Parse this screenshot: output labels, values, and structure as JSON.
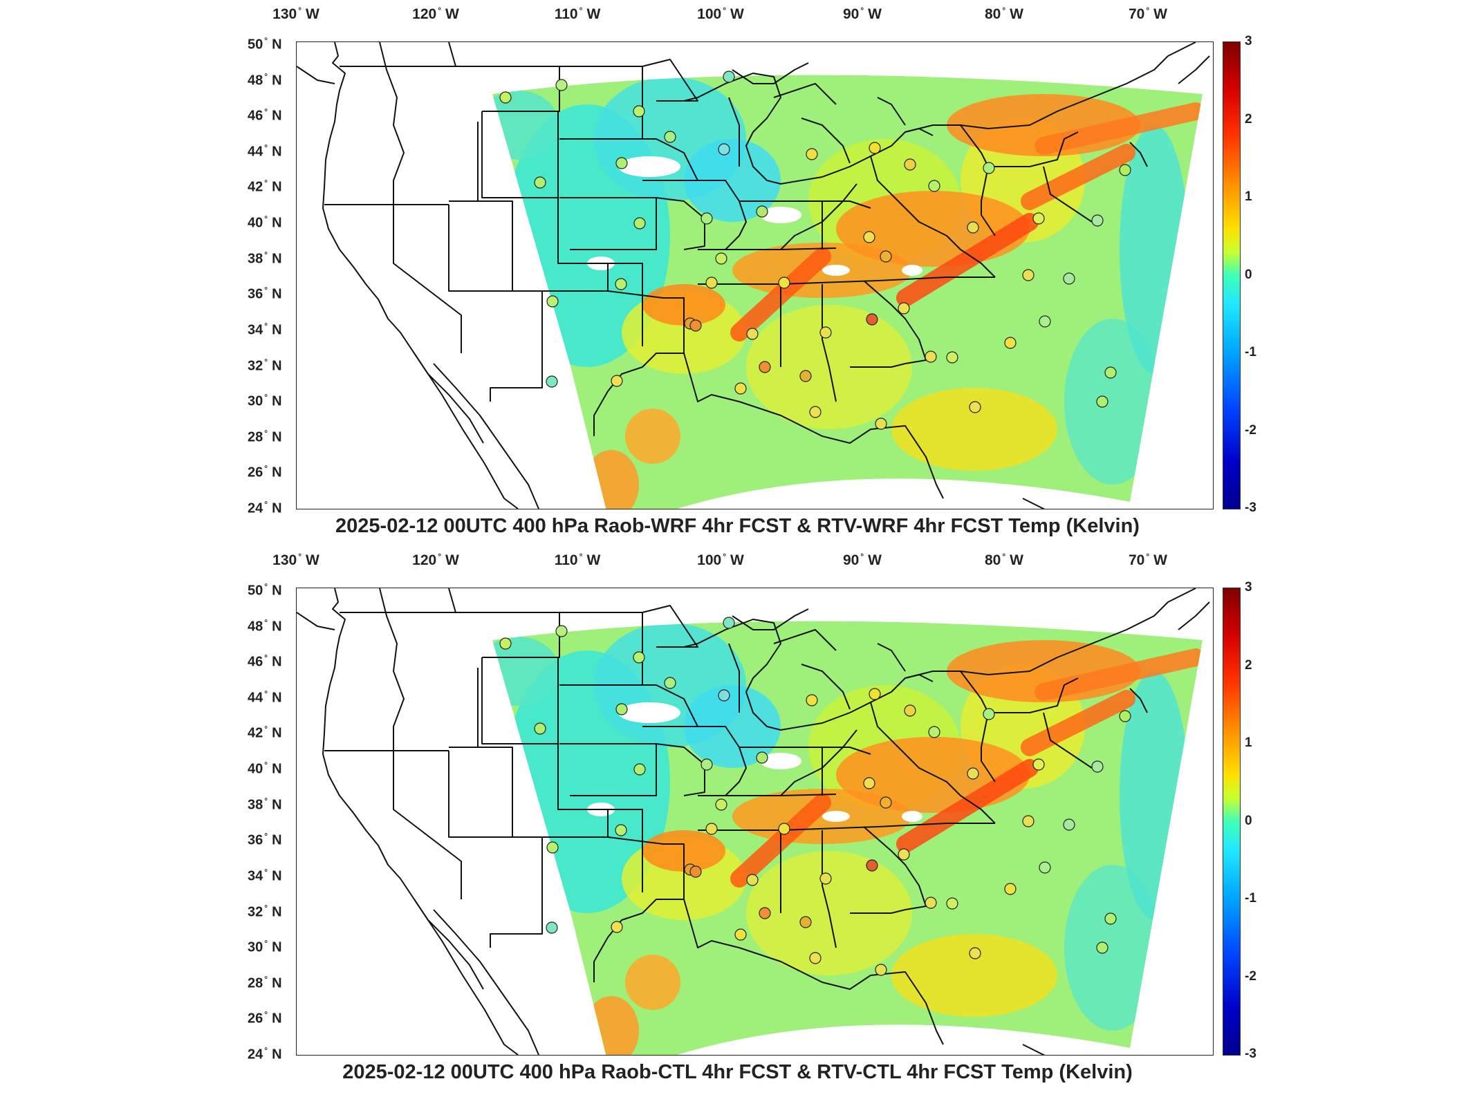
{
  "longitude_labels": [
    {
      "deg": "130",
      "dir": "W"
    },
    {
      "deg": "120",
      "dir": "W"
    },
    {
      "deg": "110",
      "dir": "W"
    },
    {
      "deg": "100",
      "dir": "W"
    },
    {
      "deg": "90",
      "dir": "W"
    },
    {
      "deg": "80",
      "dir": "W"
    },
    {
      "deg": "70",
      "dir": "W"
    }
  ],
  "latitude_labels": [
    {
      "deg": "50",
      "dir": "N"
    },
    {
      "deg": "48",
      "dir": "N"
    },
    {
      "deg": "46",
      "dir": "N"
    },
    {
      "deg": "44",
      "dir": "N"
    },
    {
      "deg": "42",
      "dir": "N"
    },
    {
      "deg": "40",
      "dir": "N"
    },
    {
      "deg": "38",
      "dir": "N"
    },
    {
      "deg": "36",
      "dir": "N"
    },
    {
      "deg": "34",
      "dir": "N"
    },
    {
      "deg": "32",
      "dir": "N"
    },
    {
      "deg": "30",
      "dir": "N"
    },
    {
      "deg": "28",
      "dir": "N"
    },
    {
      "deg": "26",
      "dir": "N"
    },
    {
      "deg": "24",
      "dir": "N"
    }
  ],
  "colorbar": {
    "ticks": [
      "3",
      "2",
      "1",
      "0",
      "-1",
      "-2",
      "-3"
    ],
    "colors": [
      "#7f0000",
      "#ff3300",
      "#ffe000",
      "#40ffb8",
      "#00a8ff",
      "#0000c8",
      "#00008f"
    ]
  },
  "panels": [
    {
      "title": "2025-02-12 00UTC 400 hPa Raob-WRF 4hr FCST & RTV-WRF 4hr FCST Temp (Kelvin)"
    },
    {
      "title": "2025-02-12 00UTC 400 hPa Raob-CTL 4hr FCST & RTV-CTL 4hr FCST Temp (Kelvin)"
    }
  ]
}
